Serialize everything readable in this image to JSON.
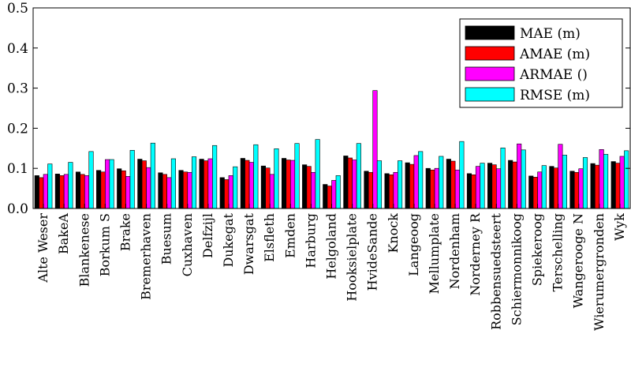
{
  "chart_data": {
    "type": "bar",
    "title": "",
    "xlabel": "",
    "ylabel": "",
    "ylim": [
      0,
      0.5
    ],
    "yticks": [
      "0.0",
      "0.1",
      "0.2",
      "0.3",
      "0.4",
      "0.5"
    ],
    "grid": false,
    "legend_position": "top-right",
    "categories": [
      "Alte Weser",
      "BakeA",
      "Blankenese",
      "Borkum S",
      "Brake",
      "Bremerhaven",
      "Buesum",
      "Cuxhaven",
      "Delfzijl",
      "Dukegat",
      "Dwarsgat",
      "Elsfleth",
      "Emden",
      "Harburg",
      "Helgoland",
      "Hooksielplate",
      "HvideSande",
      "Knock",
      "Langeoog",
      "Mellumplate",
      "Nordenham",
      "Norderney R",
      "Robbensuedsteert",
      "Schiermonnikoog",
      "Spiekeroog",
      "Terschelling",
      "Wangerooge N",
      "Wierumergronden",
      "Wyk"
    ],
    "series": [
      {
        "name": "MAE (m)",
        "color": "#000000",
        "values": [
          0.082,
          0.086,
          0.091,
          0.095,
          0.099,
          0.123,
          0.089,
          0.095,
          0.123,
          0.077,
          0.125,
          0.106,
          0.125,
          0.109,
          0.06,
          0.131,
          0.093,
          0.087,
          0.114,
          0.1,
          0.123,
          0.087,
          0.113,
          0.12,
          0.081,
          0.105,
          0.093,
          0.112,
          0.117
        ]
      },
      {
        "name": "AMAE (m)",
        "color": "#ff0000",
        "values": [
          0.077,
          0.082,
          0.085,
          0.091,
          0.094,
          0.119,
          0.085,
          0.091,
          0.119,
          0.072,
          0.12,
          0.101,
          0.121,
          0.105,
          0.056,
          0.126,
          0.09,
          0.084,
          0.11,
          0.096,
          0.118,
          0.084,
          0.109,
          0.116,
          0.078,
          0.101,
          0.09,
          0.108,
          0.113
        ]
      },
      {
        "name": "ARMAE ()",
        "color": "#ff00ff",
        "values": [
          0.085,
          0.085,
          0.082,
          0.122,
          0.08,
          0.102,
          0.077,
          0.09,
          0.124,
          0.082,
          0.115,
          0.085,
          0.12,
          0.09,
          0.07,
          0.121,
          0.294,
          0.09,
          0.132,
          0.1,
          0.096,
          0.105,
          0.099,
          0.161,
          0.091,
          0.16,
          0.099,
          0.147,
          0.13
        ]
      },
      {
        "name": "RMSE (m)",
        "color": "#00ffff",
        "values": [
          0.111,
          0.115,
          0.142,
          0.122,
          0.145,
          0.163,
          0.124,
          0.129,
          0.157,
          0.104,
          0.159,
          0.149,
          0.162,
          0.172,
          0.082,
          0.162,
          0.119,
          0.119,
          0.142,
          0.13,
          0.167,
          0.113,
          0.151,
          0.146,
          0.107,
          0.133,
          0.127,
          0.135,
          0.144
        ]
      }
    ]
  }
}
